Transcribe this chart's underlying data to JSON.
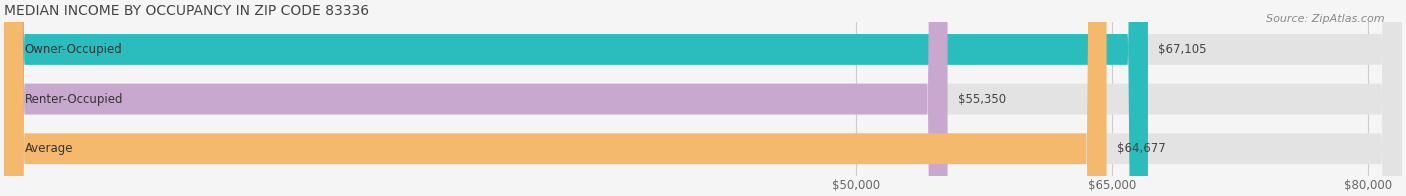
{
  "title": "MEDIAN INCOME BY OCCUPANCY IN ZIP CODE 83336",
  "source": "Source: ZipAtlas.com",
  "categories": [
    "Owner-Occupied",
    "Renter-Occupied",
    "Average"
  ],
  "values": [
    67105,
    55350,
    64677
  ],
  "bar_colors": [
    "#2bbcbe",
    "#c9a8d0",
    "#f5b96e"
  ],
  "value_labels": [
    "$67,105",
    "$55,350",
    "$64,677"
  ],
  "xlim_min": 0,
  "xlim_max": 82000,
  "xticks": [
    50000,
    65000,
    80000
  ],
  "xtick_labels": [
    "$50,000",
    "$65,000",
    "$80,000"
  ],
  "bar_height": 0.62,
  "bar_gap": 0.18,
  "title_fontsize": 10,
  "label_fontsize": 8.5,
  "tick_fontsize": 8.5,
  "source_fontsize": 8,
  "bg_color": "#f5f5f5",
  "bar_bg_color": "#e3e3e3",
  "grid_color": "#cccccc",
  "rounding_size": 1200
}
